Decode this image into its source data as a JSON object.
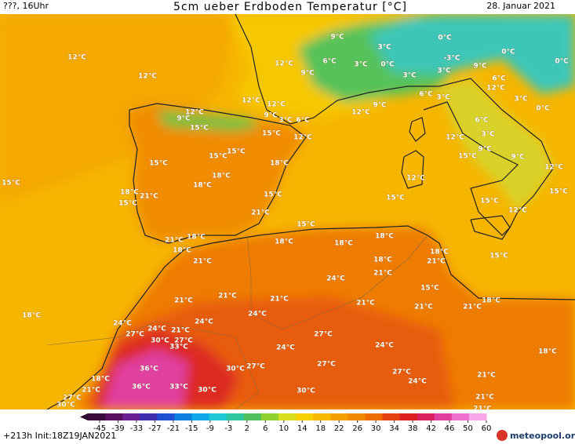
{
  "header": {
    "left": "???, 16Uhr",
    "title": "5cm ueber Erdboden Temperatur [°C]",
    "date": "28. Januar 2021"
  },
  "labels": [
    "12°C",
    "12°C",
    "12°C",
    "9°C",
    "6°C",
    "3°C",
    "3°C",
    "0°C",
    "0°C",
    "-3°C",
    "0°C",
    "0°C",
    "9°C",
    "3°C",
    "3°C",
    "9°C",
    "6°C",
    "12°C",
    "3°C",
    "0°C",
    "12°C",
    "12°C",
    "9°C",
    "12°C",
    "9°C",
    "3°C",
    "6°C",
    "12°C",
    "9°C",
    "6°C",
    "3°C",
    "6°C",
    "3°C",
    "15°C",
    "15°C",
    "12°C",
    "12°C",
    "9°C",
    "9°C",
    "15°C",
    "15°C",
    "15°C",
    "15°C",
    "18°C",
    "18°C",
    "12°C",
    "12°C",
    "15°C",
    "18°C",
    "18°C",
    "21°C",
    "15°C",
    "15°C",
    "15°C",
    "15°C",
    "15°C",
    "12°C",
    "21°C",
    "15°C",
    "21°C",
    "18°C",
    "18°C",
    "18°C",
    "18°C",
    "18°C",
    "18°C",
    "15°C",
    "21°C",
    "18°C",
    "21°C",
    "24°C",
    "21°C",
    "15°C",
    "21°C",
    "21°C",
    "21°C",
    "24°C",
    "21°C",
    "21°C",
    "21°C",
    "18°C",
    "18°C",
    "24°C",
    "24°C",
    "27°C",
    "24°C",
    "21°C",
    "30°C",
    "27°C",
    "33°C",
    "27°C",
    "24°C",
    "24°C",
    "18°C",
    "36°C",
    "30°C",
    "27°C",
    "27°C",
    "27°C",
    "21°C",
    "18°C",
    "21°C",
    "36°C",
    "33°C",
    "30°C",
    "24°C",
    "30°C",
    "21°C",
    "27°C",
    "30°C",
    "21°C"
  ],
  "colorbar": {
    "ticks": [
      -45,
      -39,
      -33,
      -27,
      -21,
      -15,
      -9,
      -3,
      2,
      6,
      10,
      14,
      18,
      22,
      26,
      30,
      34,
      38,
      42,
      46,
      50,
      60
    ]
  },
  "footer": {
    "run": "+213h Init:18Z19JAN2021",
    "logo": "meteopool.org"
  }
}
